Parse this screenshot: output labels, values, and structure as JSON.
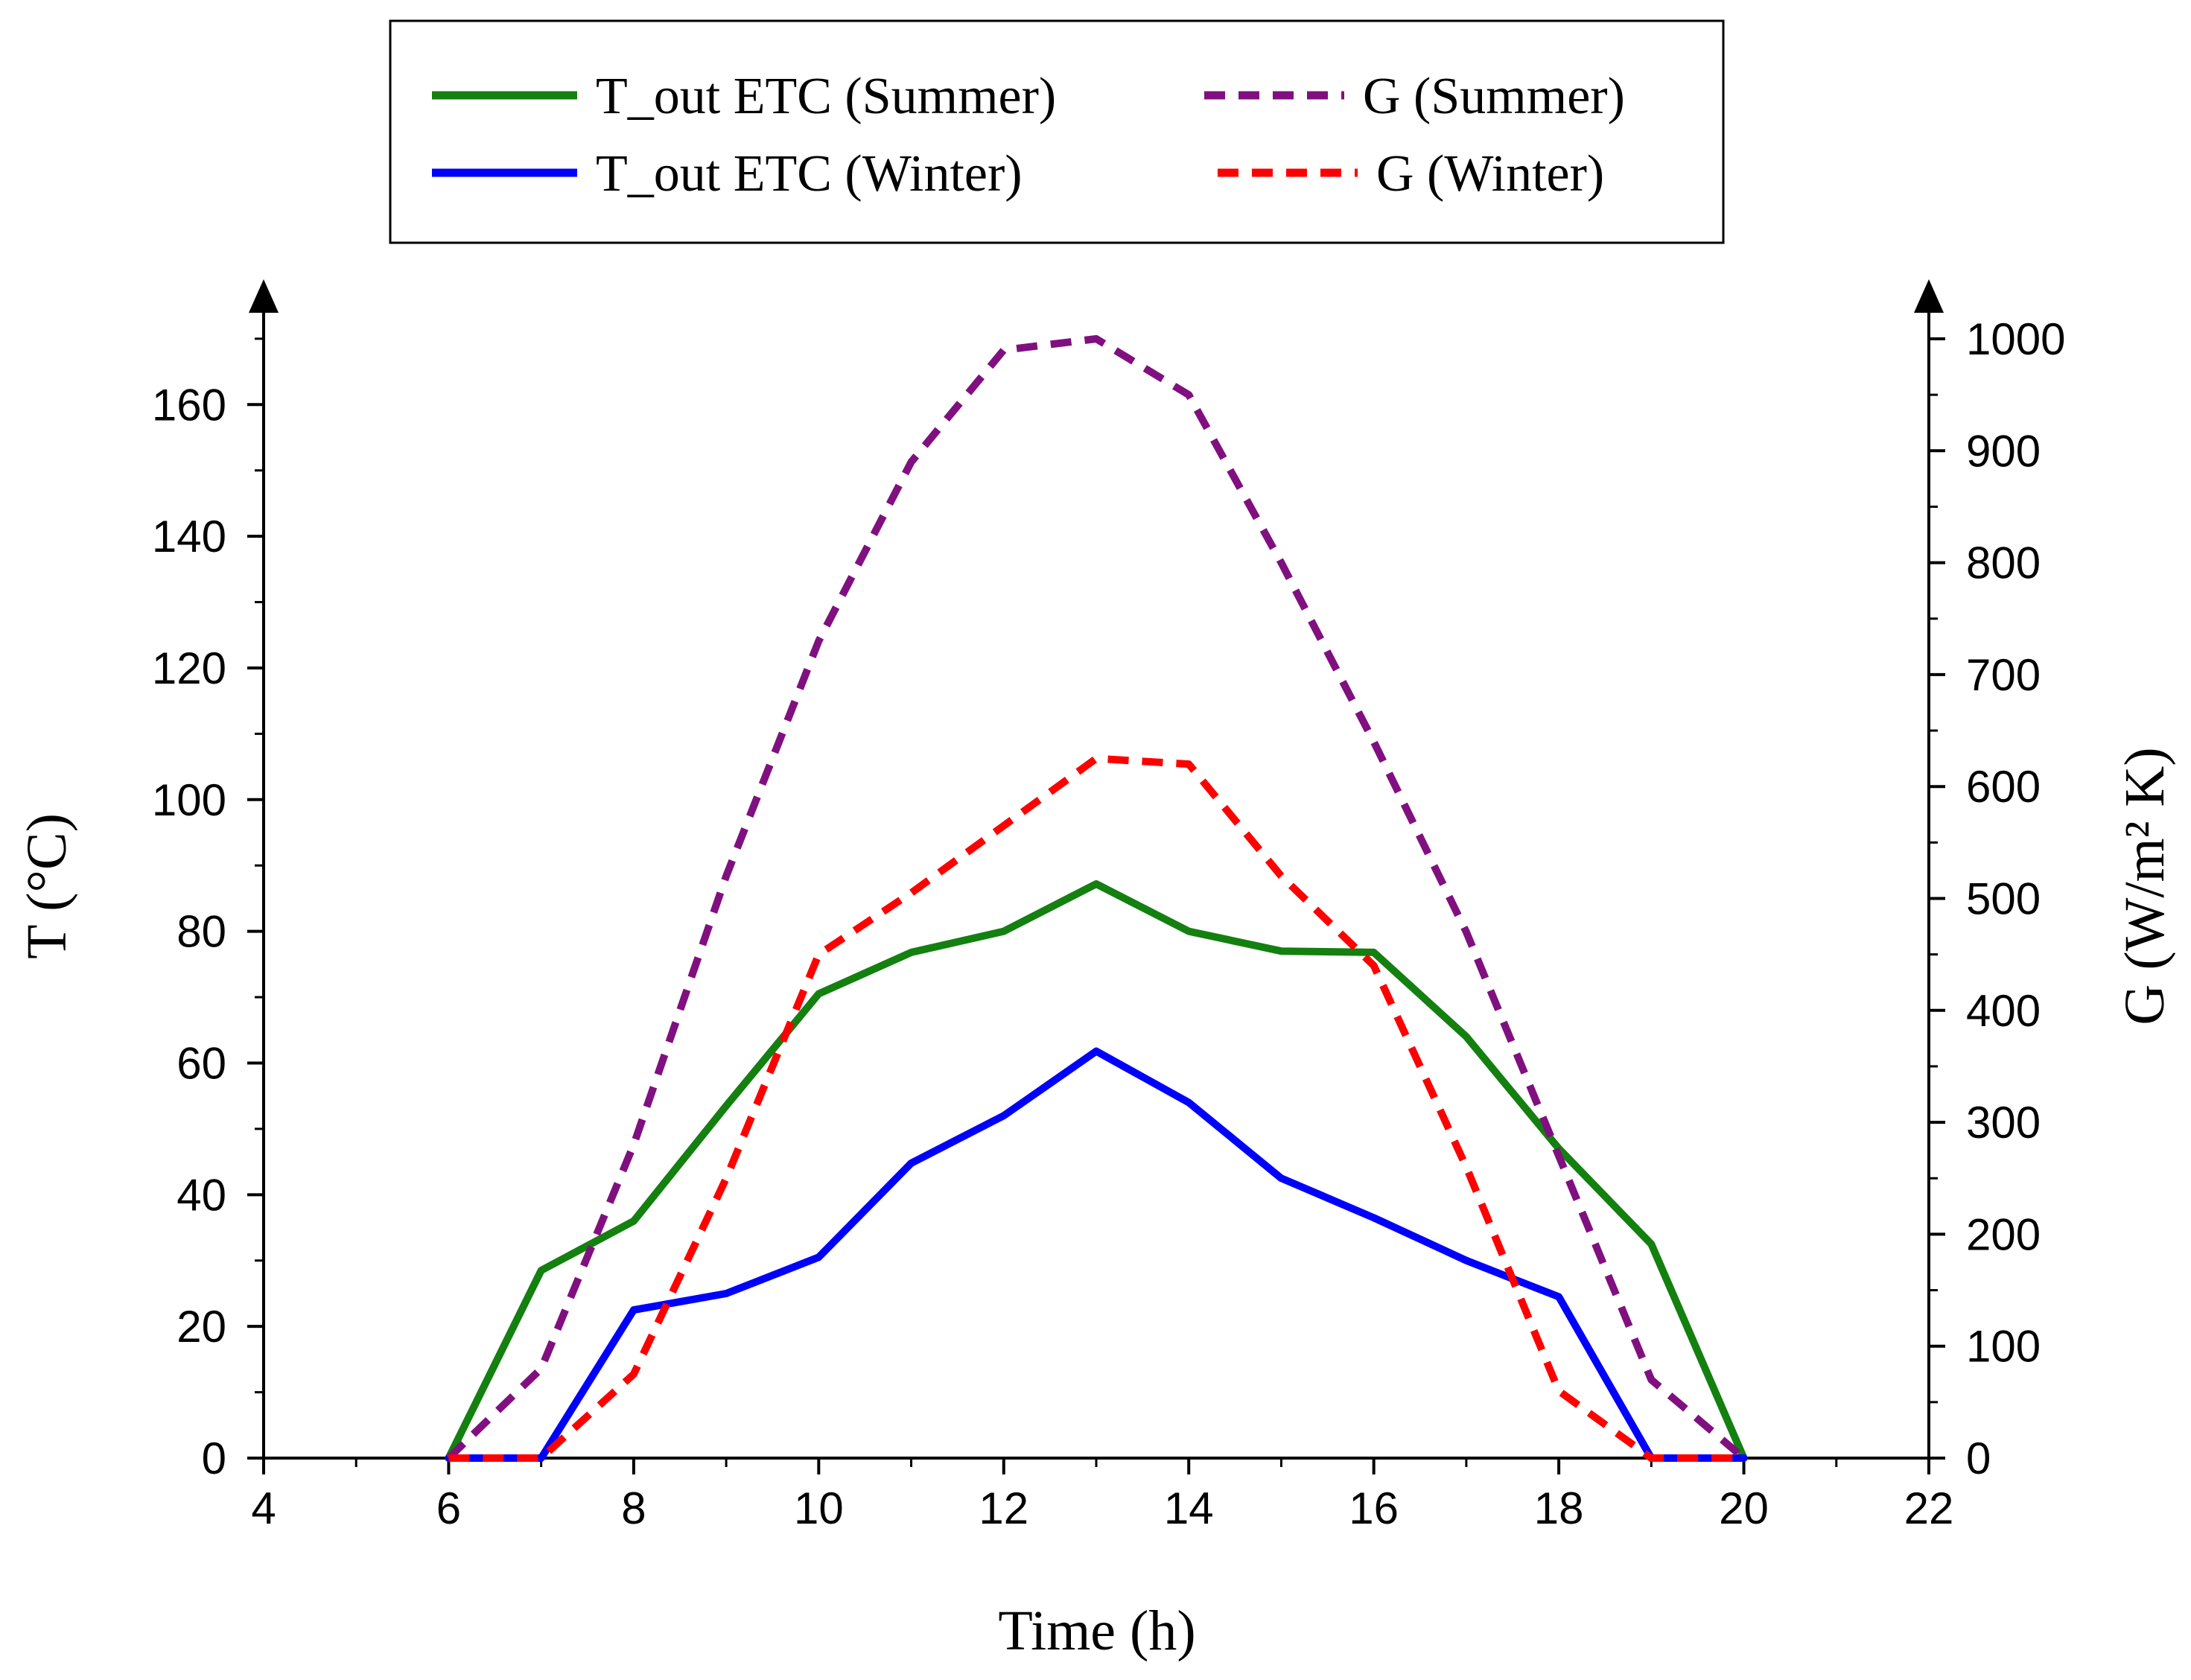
{
  "chart_data": {
    "type": "line",
    "title": "",
    "xlabel": "Time (h)",
    "ylabel_left": "T (°C)",
    "ylabel_right": "G (W/m² K)",
    "xlim": [
      4,
      22
    ],
    "ylim_left": [
      0,
      170
    ],
    "ylim_right": [
      0,
      1000
    ],
    "x_ticks": [
      4,
      6,
      8,
      10,
      12,
      14,
      16,
      18,
      20,
      22
    ],
    "y_left_ticks": [
      0,
      20,
      40,
      60,
      80,
      100,
      120,
      140,
      160
    ],
    "y_right_ticks": [
      0,
      100,
      200,
      300,
      400,
      500,
      600,
      700,
      800,
      900,
      1000
    ],
    "grid": false,
    "legend_position": "top",
    "series": [
      {
        "name": "T_out ETC (Summer)",
        "axis": "left",
        "color": "#138010",
        "dash": "solid",
        "x": [
          6,
          7,
          8,
          9,
          10,
          11,
          12,
          13,
          14,
          15,
          16,
          17,
          18,
          19,
          20
        ],
        "values": [
          0,
          28.5,
          36,
          53.5,
          70.5,
          76.8,
          80,
          87.2,
          80,
          77,
          76.8,
          64,
          47,
          32.5,
          0
        ]
      },
      {
        "name": "T_out ETC (Winter)",
        "axis": "left",
        "color": "#0000ff",
        "dash": "solid",
        "x": [
          6,
          7,
          8,
          9,
          10,
          11,
          12,
          13,
          14,
          15,
          16,
          17,
          18,
          19,
          20
        ],
        "values": [
          0,
          0,
          22.5,
          25,
          30.5,
          44.8,
          52,
          61.8,
          54,
          42.5,
          36.5,
          30,
          24.5,
          0,
          0
        ]
      },
      {
        "name": "G (Summer)",
        "axis": "right",
        "color": "#80107f",
        "dash": "dashed",
        "x": [
          6,
          7,
          8,
          9,
          10,
          11,
          12,
          13,
          14,
          15,
          16,
          17,
          18,
          19,
          20
        ],
        "values": [
          0,
          80,
          280,
          520,
          730,
          890,
          990,
          1000,
          950,
          800,
          640,
          470,
          270,
          70,
          0
        ]
      },
      {
        "name": "G (Winter)",
        "axis": "right",
        "color": "#ff0000",
        "dash": "dashed",
        "x": [
          6,
          7,
          8,
          9,
          10,
          11,
          12,
          13,
          14,
          15,
          16,
          17,
          18,
          19,
          20
        ],
        "values": [
          0,
          0,
          75,
          250,
          450,
          505,
          565,
          625,
          620,
          520,
          440,
          260,
          60,
          0,
          0
        ]
      }
    ]
  }
}
